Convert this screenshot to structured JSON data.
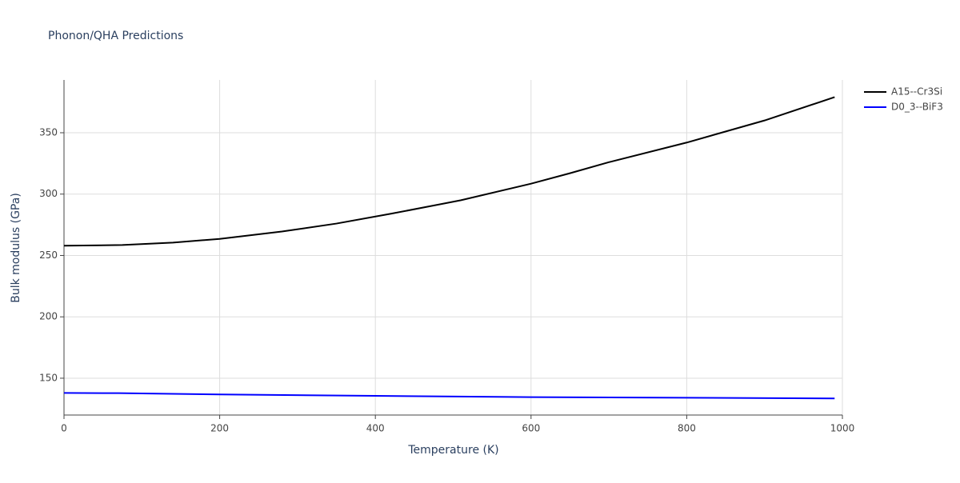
{
  "chart_data": {
    "type": "line",
    "title": "Phonon/QHA Predictions",
    "xlabel": "Temperature (K)",
    "ylabel": "Bulk modulus (GPa)",
    "xlim": [
      0,
      1000
    ],
    "ylim": [
      120,
      393
    ],
    "xticks": [
      0,
      200,
      400,
      600,
      800,
      1000
    ],
    "yticks": [
      150,
      200,
      250,
      300,
      350
    ],
    "grid": true,
    "legend": "right",
    "series": [
      {
        "name": "A15--Cr3Si",
        "color": "#000000",
        "x": [
          0,
          75,
          140,
          200,
          280,
          350,
          420,
          510,
          600,
          650,
          700,
          800,
          900,
          990
        ],
        "values": [
          258,
          258.5,
          260.5,
          263.5,
          269.5,
          276,
          284,
          295,
          308.5,
          317,
          326,
          342,
          360,
          379
        ]
      },
      {
        "name": "D0_3--BiF3",
        "color": "#0000ff",
        "x": [
          0,
          70,
          200,
          400,
          600,
          800,
          990
        ],
        "values": [
          138,
          137.8,
          136.8,
          135.6,
          134.6,
          134.1,
          133.5
        ]
      }
    ]
  }
}
